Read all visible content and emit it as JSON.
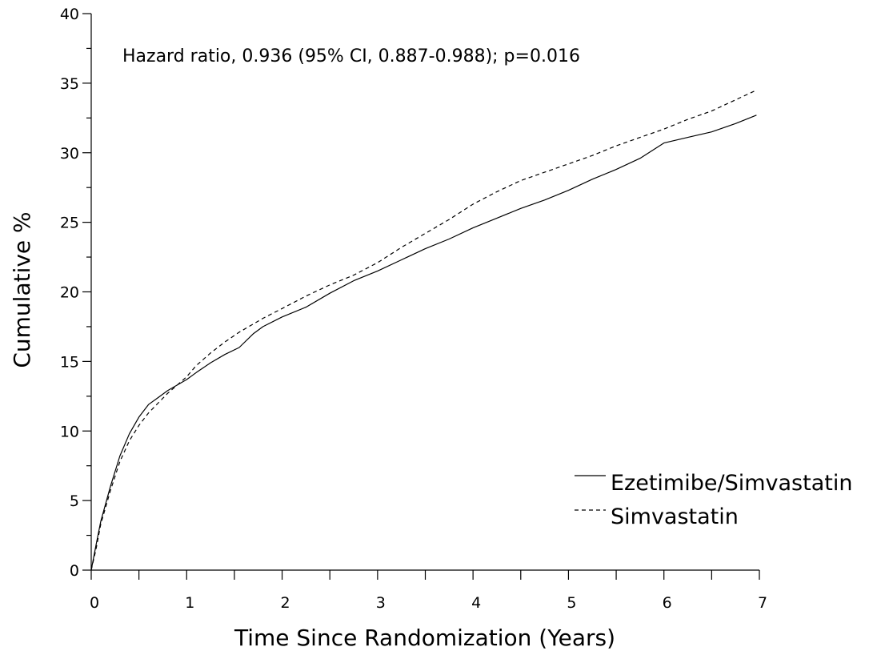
{
  "chart_data": {
    "type": "line",
    "title": "",
    "annotation": "Hazard ratio, 0.936 (95% CI, 0.887-0.988); p=0.016",
    "xlabel": "Time Since Randomization (Years)",
    "ylabel": "Cumulative %",
    "xlim": [
      0,
      7
    ],
    "ylim": [
      0,
      40
    ],
    "x_major_ticks": [
      0,
      1,
      2,
      3,
      4,
      5,
      6,
      7
    ],
    "x_minor_ticks": [
      0.5,
      1.5,
      2.5,
      3.5,
      4.5,
      5.5,
      6.5
    ],
    "y_major_ticks": [
      0,
      5,
      10,
      15,
      20,
      25,
      30,
      35,
      40
    ],
    "y_minor_ticks": [
      2.5,
      7.5,
      12.5,
      17.5,
      22.5,
      27.5,
      32.5,
      37.5
    ],
    "grid": false,
    "legend_position": "bottom-right",
    "series": [
      {
        "name": "Ezetimibe/Simvastatin",
        "line_style": "solid",
        "color": "#000000",
        "x": [
          0,
          0.05,
          0.1,
          0.2,
          0.3,
          0.4,
          0.5,
          0.6,
          0.7,
          0.8,
          0.9,
          1.0,
          1.1,
          1.25,
          1.4,
          1.55,
          1.7,
          1.8,
          2.0,
          2.25,
          2.5,
          2.75,
          3.0,
          3.25,
          3.5,
          3.75,
          4.0,
          4.25,
          4.5,
          4.75,
          5.0,
          5.25,
          5.5,
          5.75,
          6.0,
          6.25,
          6.5,
          6.75,
          6.97
        ],
        "y": [
          0,
          1.8,
          3.5,
          6.0,
          8.2,
          9.8,
          11.0,
          11.9,
          12.4,
          12.9,
          13.3,
          13.7,
          14.2,
          14.9,
          15.5,
          16.0,
          17.0,
          17.5,
          18.2,
          18.9,
          19.9,
          20.8,
          21.5,
          22.3,
          23.1,
          23.8,
          24.6,
          25.3,
          26.0,
          26.6,
          27.3,
          28.1,
          28.8,
          29.6,
          30.7,
          31.1,
          31.5,
          32.1,
          32.7
        ]
      },
      {
        "name": "Simvastatin",
        "line_style": "dashed",
        "color": "#000000",
        "x": [
          0,
          0.05,
          0.1,
          0.2,
          0.3,
          0.4,
          0.5,
          0.6,
          0.7,
          0.8,
          0.9,
          1.0,
          1.1,
          1.25,
          1.4,
          1.55,
          1.7,
          1.8,
          2.0,
          2.25,
          2.5,
          2.75,
          3.0,
          3.25,
          3.5,
          3.75,
          4.0,
          4.25,
          4.5,
          4.75,
          5.0,
          5.25,
          5.5,
          5.75,
          6.0,
          6.25,
          6.5,
          6.75,
          6.97
        ],
        "y": [
          0,
          1.5,
          3.3,
          5.7,
          7.8,
          9.3,
          10.4,
          11.3,
          12.0,
          12.7,
          13.3,
          13.9,
          14.7,
          15.6,
          16.4,
          17.1,
          17.7,
          18.1,
          18.8,
          19.7,
          20.5,
          21.2,
          22.1,
          23.2,
          24.2,
          25.2,
          26.3,
          27.2,
          28.0,
          28.6,
          29.2,
          29.8,
          30.5,
          31.1,
          31.7,
          32.4,
          33.0,
          33.8,
          34.5
        ]
      }
    ]
  }
}
